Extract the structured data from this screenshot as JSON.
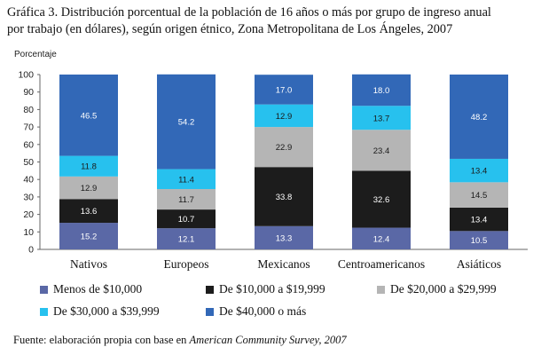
{
  "title": {
    "line1": "Gráfica 3. Distribución porcentual de la población de 16 años o más por grupo de ingreso anual",
    "line2": "por trabajo (en dólares), según origen étnico, Zona Metropolitana de Los Ángeles, 2007"
  },
  "chart_data": {
    "type": "bar",
    "stacked": true,
    "title": "Gráfica 3. Distribución porcentual de la población de 16 años o más por grupo de ingreso anual por trabajo (en dólares), según origen étnico, Zona Metropolitana de Los Ángeles, 2007",
    "ylabel": "Porcentaje",
    "xlabel": "",
    "ylim": [
      0,
      100
    ],
    "yticks": [
      0,
      10,
      20,
      30,
      40,
      50,
      60,
      70,
      80,
      90,
      100
    ],
    "categories": [
      "Nativos",
      "Europeos",
      "Mexicanos",
      "Centroamericanos",
      "Asiáticos"
    ],
    "series": [
      {
        "name": "Menos de $10,000",
        "color": "#5a68a6",
        "label_color": "#ffffff",
        "values": [
          15.2,
          12.1,
          13.3,
          12.4,
          10.5
        ]
      },
      {
        "name": "De $10,000 a $19,999",
        "color": "#1c1c1c",
        "label_color": "#ffffff",
        "values": [
          13.6,
          10.7,
          33.8,
          32.6,
          13.4
        ]
      },
      {
        "name": "De $20,000 a $29,999",
        "color": "#b5b5b5",
        "label_color": "#1a1a1a",
        "values": [
          12.9,
          11.7,
          22.9,
          23.4,
          14.5
        ]
      },
      {
        "name": "De $30,000 a $39,999",
        "color": "#27c1ee",
        "label_color": "#1a1a1a",
        "values": [
          11.8,
          11.4,
          12.9,
          13.7,
          13.4
        ]
      },
      {
        "name": "De $40,000 o más",
        "color": "#3268b7",
        "label_color": "#ffffff",
        "values": [
          46.5,
          54.2,
          17.0,
          18.0,
          48.2
        ]
      }
    ],
    "legend_position": "bottom",
    "grid": false
  },
  "source": {
    "prefix": "Fuente: elaboración propia con base en ",
    "italic": "American Community Survey, 2007"
  }
}
